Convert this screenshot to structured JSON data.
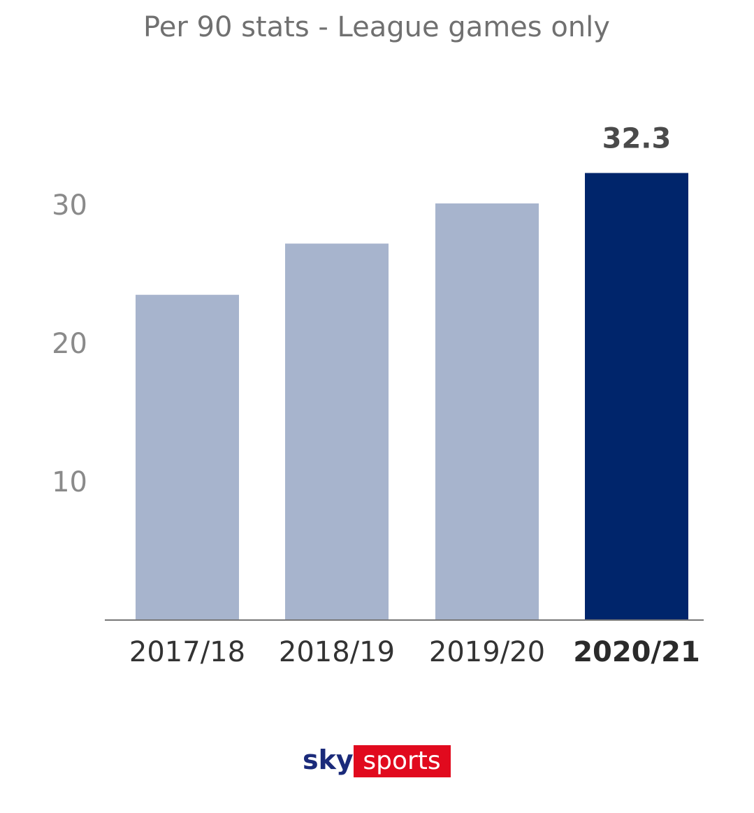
{
  "chart_data": {
    "type": "bar",
    "title": "Per 90 stats - League games only",
    "categories": [
      "2017/18",
      "2018/19",
      "2019/20",
      "2020/21"
    ],
    "values": [
      23.5,
      27.2,
      30.1,
      32.3
    ],
    "highlight_index": 3,
    "data_labels": [
      {
        "index": 3,
        "text": "32.3"
      }
    ],
    "yticks": [
      10,
      20,
      30
    ],
    "ylim": [
      0,
      35
    ],
    "grid": false,
    "colors": {
      "bar": "#a7b4cd",
      "bar_highlight": "#00256b",
      "axis": "#777777"
    }
  },
  "logo": {
    "sky": "sky",
    "sports": "sports",
    "sky_color": "#1a2a7a",
    "sports_bg": "#e10a1e"
  }
}
